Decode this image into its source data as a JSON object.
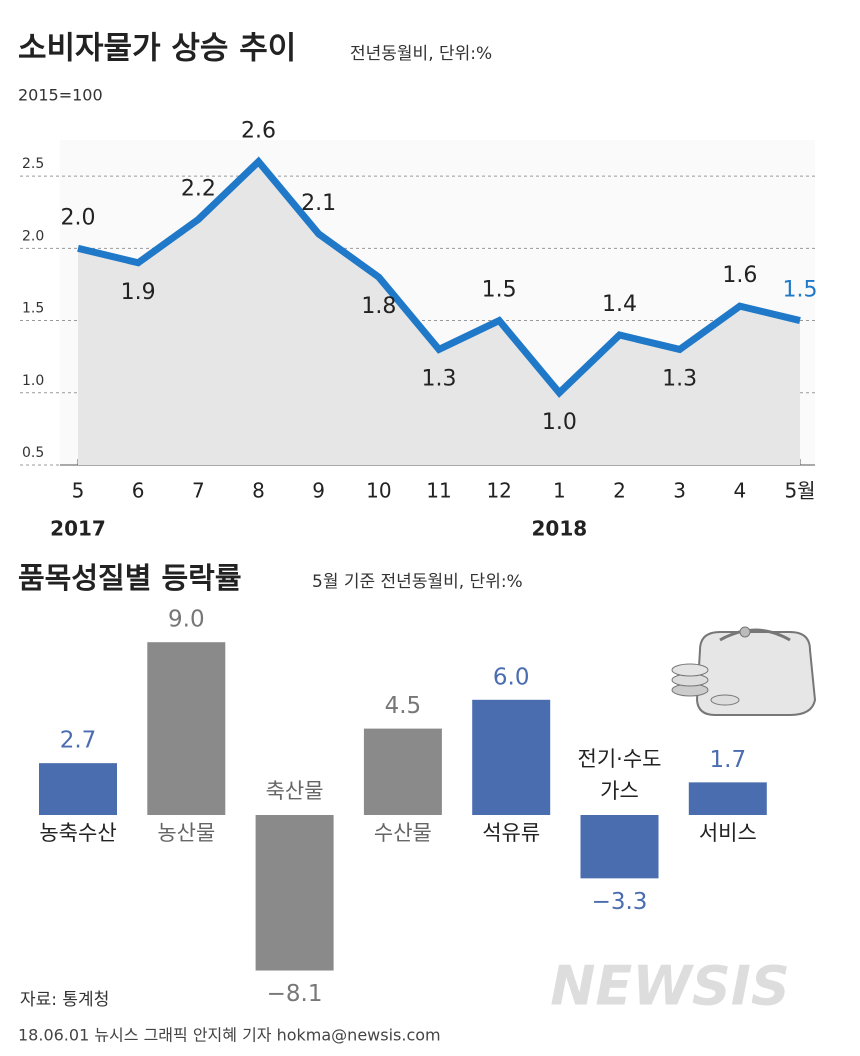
{
  "chart_data": [
    {
      "type": "line",
      "title": "소비자물가 상승 추이",
      "subtitle": "전년동월비, 단위:%",
      "note": "2015=100",
      "categories": [
        "5",
        "6",
        "7",
        "8",
        "9",
        "10",
        "11",
        "12",
        "1",
        "2",
        "3",
        "4",
        "5월"
      ],
      "years": [
        "2017",
        "2018"
      ],
      "series": [
        {
          "name": "소비자물가",
          "color": "#1f78c8",
          "values": [
            2.0,
            1.9,
            2.2,
            2.6,
            2.1,
            1.8,
            1.3,
            1.5,
            1.0,
            1.4,
            1.3,
            1.6,
            1.5
          ],
          "value_labels": [
            "2.0",
            "1.9",
            "2.2",
            "2.6",
            "2.1",
            "1.8",
            "1.3",
            "1.5",
            "1.0",
            "1.4",
            "1.3",
            "1.6",
            "1.5"
          ]
        }
      ],
      "ylim": [
        0.5,
        2.75
      ],
      "yticks": [
        {
          "value": 0.5,
          "label": "0.5"
        },
        {
          "value": 1,
          "label": "1.0"
        },
        {
          "value": 1.5,
          "label": "1.5"
        },
        {
          "value": 2,
          "label": "2.0"
        },
        {
          "value": 2.5,
          "label": "2.5"
        }
      ],
      "grid": true
    },
    {
      "type": "bar",
      "title": "품목성질별 등락률",
      "subtitle": "5월 기준 전년동월비, 단위:%",
      "categories": [
        "농축수산",
        "농산물",
        "축산물",
        "수산물",
        "석유류",
        "전기·수도\n가스",
        "서비스"
      ],
      "values": [
        2.7,
        9.0,
        -8.1,
        4.5,
        6.0,
        -3.3,
        1.7
      ],
      "value_labels": [
        "2.7",
        "9.0",
        "−8.1",
        "4.5",
        "6.0",
        "−3.3",
        "1.7"
      ],
      "colors": [
        "#4a6db0",
        "#8a8a8a",
        "#8a8a8a",
        "#8a8a8a",
        "#4a6db0",
        "#4a6db0",
        "#4a6db0"
      ]
    }
  ],
  "source": "자료: 통계청",
  "credit": "18.06.01 뉴시스 그래픽 안지혜 기자 hokma@newsis.com",
  "watermark": "NEWSIS"
}
